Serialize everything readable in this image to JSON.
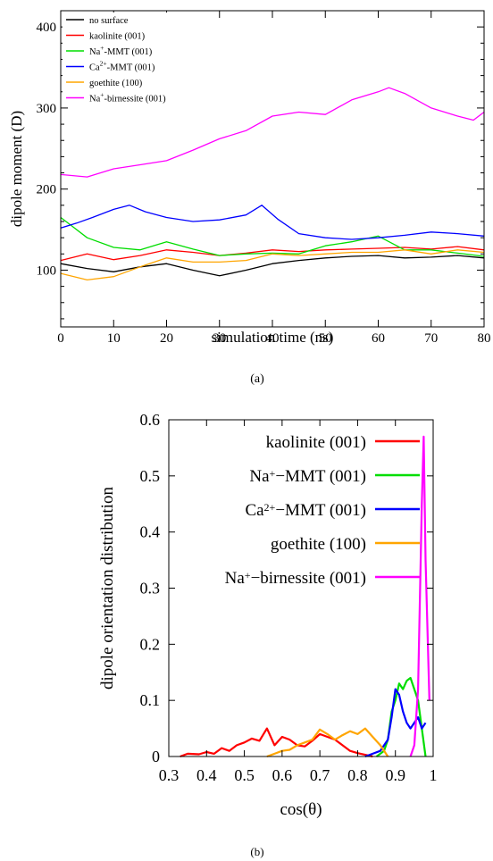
{
  "figure": {
    "panel_a_caption": "(a)",
    "panel_b_caption": "(b)"
  },
  "chart_data": [
    {
      "type": "line",
      "xlabel": "simulation time (ns)",
      "ylabel": "dipole moment (D)",
      "xlim": [
        0,
        80
      ],
      "ylim": [
        30,
        420
      ],
      "xticks": [
        0,
        10,
        20,
        30,
        40,
        50,
        60,
        70,
        80
      ],
      "yticks": [
        100,
        200,
        300,
        400
      ],
      "grid": false,
      "legend_position": "top-left",
      "legend": [
        {
          "pre": "no surface",
          "sup": "",
          "post": ""
        },
        {
          "pre": "kaolinite (001)",
          "sup": "",
          "post": ""
        },
        {
          "pre": "Na",
          "sup": "+",
          "post": "-MMT (001)"
        },
        {
          "pre": "Ca",
          "sup": "2+",
          "post": "-MMT (001)"
        },
        {
          "pre": "goethite (100)",
          "sup": "",
          "post": ""
        },
        {
          "pre": "Na",
          "sup": "+",
          "post": "-birnessite (001)"
        }
      ],
      "series": [
        {
          "name": "no surface",
          "color": "#000000",
          "x": [
            0,
            5,
            10,
            15,
            20,
            25,
            30,
            35,
            40,
            45,
            50,
            55,
            60,
            65,
            70,
            75,
            80
          ],
          "y": [
            108,
            102,
            98,
            104,
            108,
            100,
            93,
            100,
            108,
            112,
            115,
            117,
            118,
            115,
            116,
            118,
            115
          ]
        },
        {
          "name": "kaolinite (001)",
          "color": "#ff0000",
          "x": [
            0,
            5,
            10,
            15,
            20,
            25,
            30,
            35,
            40,
            45,
            50,
            55,
            60,
            65,
            70,
            75,
            80
          ],
          "y": [
            112,
            120,
            113,
            118,
            125,
            122,
            118,
            121,
            125,
            123,
            125,
            126,
            127,
            128,
            126,
            129,
            125
          ]
        },
        {
          "name": "Na+-MMT (001)",
          "color": "#00dd00",
          "x": [
            0,
            2,
            5,
            10,
            15,
            20,
            25,
            30,
            35,
            40,
            45,
            50,
            55,
            60,
            65,
            70,
            75,
            80
          ],
          "y": [
            165,
            155,
            140,
            128,
            125,
            135,
            126,
            118,
            120,
            121,
            120,
            130,
            135,
            142,
            125,
            125,
            121,
            117
          ]
        },
        {
          "name": "Ca2+-MMT (001)",
          "color": "#0000ff",
          "x": [
            0,
            3,
            6,
            10,
            13,
            16,
            20,
            25,
            30,
            35,
            38,
            41,
            45,
            50,
            55,
            60,
            65,
            70,
            75,
            80
          ],
          "y": [
            152,
            158,
            165,
            175,
            180,
            172,
            165,
            160,
            162,
            168,
            180,
            163,
            145,
            140,
            138,
            140,
            143,
            147,
            145,
            142
          ]
        },
        {
          "name": "goethite (100)",
          "color": "#ffa500",
          "x": [
            0,
            5,
            10,
            15,
            20,
            25,
            30,
            35,
            40,
            45,
            50,
            55,
            60,
            65,
            70,
            75,
            80
          ],
          "y": [
            96,
            88,
            92,
            104,
            115,
            110,
            110,
            112,
            120,
            118,
            120,
            122,
            122,
            125,
            120,
            125,
            122
          ]
        },
        {
          "name": "Na+-birnessite (001)",
          "color": "#ff00ff",
          "x": [
            0,
            5,
            10,
            15,
            20,
            25,
            30,
            35,
            40,
            45,
            50,
            55,
            60,
            62,
            65,
            70,
            75,
            78,
            80
          ],
          "y": [
            218,
            215,
            225,
            230,
            235,
            248,
            262,
            272,
            290,
            295,
            292,
            310,
            320,
            325,
            318,
            300,
            290,
            285,
            295
          ]
        }
      ]
    },
    {
      "type": "line",
      "xlabel": "cos(θ)",
      "ylabel": "dipole orientation distribution",
      "xlim": [
        0.3,
        1.0
      ],
      "ylim": [
        0,
        0.6
      ],
      "xticks": [
        0.3,
        0.4,
        0.5,
        0.6,
        0.7,
        0.8,
        0.9,
        1
      ],
      "xtick_labels": [
        "0.3",
        "0.4",
        "0.5",
        "0.6",
        "0.7",
        "0.8",
        "0.9",
        "1"
      ],
      "yticks": [
        0,
        0.1,
        0.2,
        0.3,
        0.4,
        0.5,
        0.6
      ],
      "ytick_labels": [
        "0",
        "0.1",
        "0.2",
        "0.3",
        "0.4",
        "0.5",
        "0.6"
      ],
      "grid": false,
      "legend_position": "top-right",
      "legend": [
        {
          "pre": "kaolinite (001)",
          "sup": "",
          "post": ""
        },
        {
          "pre": "Na",
          "sup": "+",
          "post": "−MMT (001)"
        },
        {
          "pre": "Ca",
          "sup": "2+",
          "post": "−MMT (001)"
        },
        {
          "pre": "goethite (100)",
          "sup": "",
          "post": ""
        },
        {
          "pre": "Na",
          "sup": "+",
          "post": "−birnessite (001)"
        }
      ],
      "series": [
        {
          "name": "kaolinite (001)",
          "color": "#ff0000",
          "x": [
            0.33,
            0.35,
            0.38,
            0.4,
            0.42,
            0.44,
            0.46,
            0.48,
            0.5,
            0.52,
            0.54,
            0.56,
            0.58,
            0.6,
            0.62,
            0.64,
            0.66,
            0.68,
            0.7,
            0.72,
            0.74,
            0.76,
            0.78,
            0.8,
            0.82,
            0.84
          ],
          "y": [
            0,
            0.005,
            0.004,
            0.008,
            0.005,
            0.015,
            0.01,
            0.02,
            0.025,
            0.032,
            0.028,
            0.05,
            0.02,
            0.035,
            0.03,
            0.02,
            0.018,
            0.028,
            0.04,
            0.035,
            0.03,
            0.02,
            0.01,
            0.006,
            0.003,
            0
          ]
        },
        {
          "name": "Na+-MMT (001)",
          "color": "#00dd00",
          "x": [
            0.85,
            0.87,
            0.88,
            0.89,
            0.9,
            0.91,
            0.92,
            0.93,
            0.94,
            0.95,
            0.96,
            0.97,
            0.98
          ],
          "y": [
            0,
            0.01,
            0.03,
            0.08,
            0.1,
            0.13,
            0.12,
            0.135,
            0.14,
            0.12,
            0.1,
            0.05,
            0
          ]
        },
        {
          "name": "Ca2+-MMT (001)",
          "color": "#0000ff",
          "x": [
            0.82,
            0.84,
            0.86,
            0.88,
            0.89,
            0.9,
            0.91,
            0.92,
            0.93,
            0.94,
            0.95,
            0.96,
            0.97,
            0.98
          ],
          "y": [
            0,
            0.005,
            0.01,
            0.03,
            0.07,
            0.12,
            0.11,
            0.08,
            0.06,
            0.05,
            0.06,
            0.07,
            0.05,
            0.06
          ]
        },
        {
          "name": "goethite (100)",
          "color": "#ffa500",
          "x": [
            0.56,
            0.58,
            0.6,
            0.62,
            0.64,
            0.66,
            0.68,
            0.7,
            0.72,
            0.74,
            0.76,
            0.78,
            0.8,
            0.82,
            0.84,
            0.86,
            0.88
          ],
          "y": [
            0,
            0.005,
            0.01,
            0.012,
            0.02,
            0.025,
            0.03,
            0.048,
            0.04,
            0.03,
            0.038,
            0.045,
            0.04,
            0.05,
            0.035,
            0.02,
            0
          ]
        },
        {
          "name": "Na+-birnessite (001)",
          "color": "#ff00ff",
          "x": [
            0.94,
            0.95,
            0.96,
            0.97,
            0.975,
            0.98,
            0.99
          ],
          "y": [
            0,
            0.02,
            0.12,
            0.45,
            0.57,
            0.35,
            0.1
          ]
        }
      ]
    }
  ]
}
